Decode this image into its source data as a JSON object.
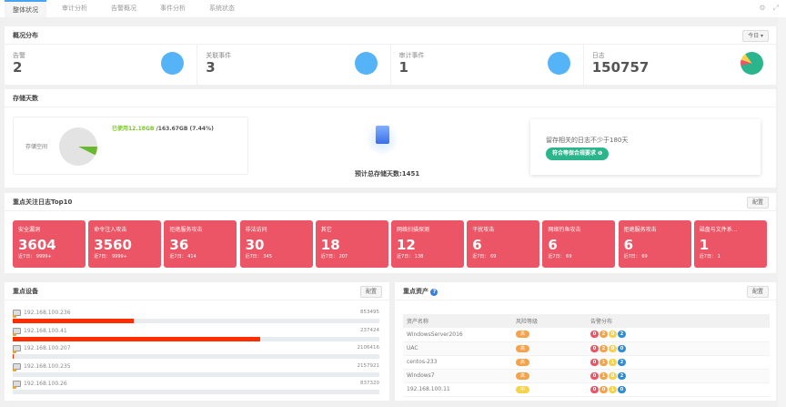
{
  "tabs": [
    "整体状况",
    "审计分析",
    "告警概况",
    "事件分析",
    "系统状态"
  ],
  "overview": {
    "title": "概况分布",
    "range_button": "今日 ▾",
    "stats": [
      {
        "label": "告警",
        "value": "2"
      },
      {
        "label": "关联事件",
        "value": "3"
      },
      {
        "label": "审计事件",
        "value": "1"
      },
      {
        "label": "日志",
        "value": "150757"
      }
    ]
  },
  "storage": {
    "title": "存储天数",
    "space_label": "存储空间",
    "used_text": "已使用12.18GB",
    "total_text": " /163.67GB (7.44%)",
    "used_percent": 7.44,
    "estimate": "预计总存储天数:1451",
    "tip_text": "留存相关的日志不少于180天",
    "compliance_badge": "符合等保合规要求 ❶"
  },
  "top10": {
    "title": "重点关注日志Top10",
    "config_button": "配置",
    "cards": [
      {
        "label": "安全漏洞",
        "value": "3604",
        "recent": "近7日： 9999+"
      },
      {
        "label": "命令注入攻击",
        "value": "3560",
        "recent": "近7日： 9999+"
      },
      {
        "label": "拒绝服务攻击",
        "value": "36",
        "recent": "近7日： 414"
      },
      {
        "label": "非法访问",
        "value": "30",
        "recent": "近7日： 345"
      },
      {
        "label": "其它",
        "value": "18",
        "recent": "近7日： 207"
      },
      {
        "label": "网络扫描探测",
        "value": "12",
        "recent": "近7日： 138"
      },
      {
        "label": "干扰攻击",
        "value": "6",
        "recent": "近7日： 69"
      },
      {
        "label": "网络钓鱼攻击",
        "value": "6",
        "recent": "近7日： 69"
      },
      {
        "label": "拒绝服务攻击",
        "value": "6",
        "recent": "近7日： 69"
      },
      {
        "label": "磁盘与文件系...",
        "value": "1",
        "recent": "近7日： 1"
      }
    ]
  },
  "devices": {
    "title": "重点设备",
    "config_button": "配置",
    "rows": [
      {
        "ip": "192.168.100.236",
        "count": "853495",
        "fill": 0.33
      },
      {
        "ip": "192.168.100.41",
        "count": "237424",
        "fill": 0.675
      },
      {
        "ip": "192.168.100.207",
        "count": "2106416",
        "fill": 0.003
      },
      {
        "ip": "192.168.100.235",
        "count": "2157921",
        "fill": 0
      },
      {
        "ip": "192.168.100.26",
        "count": "837320",
        "fill": 0
      }
    ]
  },
  "assets": {
    "title": "重点资产",
    "config_button": "配置",
    "columns": [
      "资产名称",
      "风险等级",
      "告警分布"
    ],
    "rows": [
      {
        "name": "WindowsServer2016",
        "risk": "高",
        "alerts": [
          "0",
          "2",
          "0",
          "2"
        ]
      },
      {
        "name": "UAC",
        "risk": "高",
        "alerts": [
          "0",
          "2",
          "0",
          "0"
        ]
      },
      {
        "name": "centos-233",
        "risk": "高",
        "alerts": [
          "0",
          "1",
          "1",
          "2"
        ]
      },
      {
        "name": "Windows7",
        "risk": "高",
        "alerts": [
          "0",
          "1",
          "0",
          "2"
        ]
      },
      {
        "name": "192.168.100.11",
        "risk": "中",
        "alerts": [
          "0",
          "0",
          "1",
          "0"
        ]
      }
    ]
  },
  "colors": {
    "card": "#ec5565",
    "accent": "#55b4f8",
    "compliance": "#2bb58c",
    "risk_high": "#f5a34a",
    "risk_mid": "#f7d34a",
    "alert_levels": [
      "#ec5565",
      "#f5a34a",
      "#f7d34a",
      "#2d8ed6"
    ]
  }
}
